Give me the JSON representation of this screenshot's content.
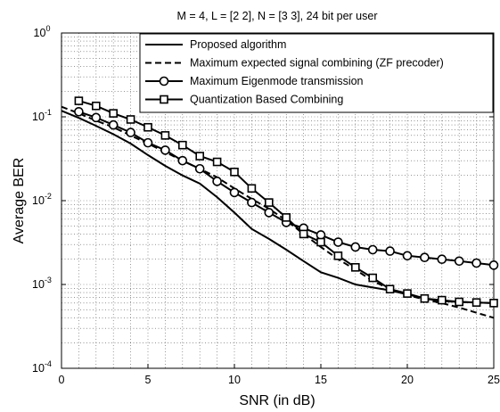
{
  "chart_data": {
    "type": "line",
    "title": "M = 4, L = [2 2], N = [3 3], 24 bit per user",
    "xlabel": "SNR (in dB)",
    "ylabel": "Average BER",
    "xlim": [
      0,
      25
    ],
    "ylim": [
      0.0001,
      1
    ],
    "yscale": "log",
    "grid": true,
    "legend_position": "top-right",
    "x_ticks": [
      "0",
      "5",
      "10",
      "15",
      "20",
      "25"
    ],
    "y_ticks": [
      {
        "base": "10",
        "exp": "-4"
      },
      {
        "base": "10",
        "exp": "-3"
      },
      {
        "base": "10",
        "exp": "-2"
      },
      {
        "base": "10",
        "exp": "-1"
      },
      {
        "base": "10",
        "exp": "0"
      }
    ],
    "series": [
      {
        "name": "Proposed algorithm",
        "style": "solid",
        "marker": "none",
        "x": [
          0,
          1,
          2,
          3,
          4,
          5,
          6,
          7,
          8,
          9,
          10,
          11,
          12,
          13,
          14,
          15,
          16,
          17,
          18,
          19,
          20,
          21,
          22,
          23,
          24,
          25
        ],
        "y": [
          0.118,
          0.097,
          0.078,
          0.062,
          0.048,
          0.035,
          0.026,
          0.02,
          0.016,
          0.011,
          0.0072,
          0.0046,
          0.0035,
          0.0026,
          0.0019,
          0.0014,
          0.0012,
          0.001,
          0.00092,
          0.00085,
          0.00076,
          0.00068,
          0.00063,
          0.00062,
          0.00061,
          0.0006
        ]
      },
      {
        "name": "Maximum expected signal combining (ZF precoder)",
        "style": "dashed",
        "marker": "none",
        "x": [
          0,
          1,
          2,
          3,
          4,
          5,
          6,
          7,
          8,
          9,
          10,
          11,
          12,
          13,
          14,
          15,
          16,
          17,
          18,
          19,
          20,
          21,
          22,
          23,
          24,
          25
        ],
        "y": [
          0.132,
          0.11,
          0.09,
          0.075,
          0.06,
          0.048,
          0.038,
          0.03,
          0.024,
          0.019,
          0.014,
          0.0105,
          0.008,
          0.0058,
          0.004,
          0.0028,
          0.002,
          0.0015,
          0.0011,
          0.00088,
          0.00075,
          0.00066,
          0.0006,
          0.00053,
          0.00046,
          0.0004
        ]
      },
      {
        "name": "Maximum Eigenmode transmission",
        "style": "solid",
        "marker": "circle",
        "x": [
          1,
          2,
          3,
          4,
          5,
          6,
          7,
          8,
          9,
          10,
          11,
          12,
          13,
          14,
          15,
          16,
          17,
          18,
          19,
          20,
          21,
          22,
          23,
          24,
          25
        ],
        "y": [
          0.115,
          0.098,
          0.08,
          0.065,
          0.049,
          0.04,
          0.03,
          0.024,
          0.017,
          0.0125,
          0.0095,
          0.0072,
          0.0055,
          0.0047,
          0.0039,
          0.0032,
          0.0028,
          0.0026,
          0.0025,
          0.0022,
          0.0021,
          0.002,
          0.0019,
          0.0018,
          0.0017
        ]
      },
      {
        "name": "Quantization Based Combining",
        "style": "solid",
        "marker": "square",
        "x": [
          1,
          2,
          3,
          4,
          5,
          6,
          7,
          8,
          9,
          10,
          11,
          12,
          13,
          14,
          15,
          16,
          17,
          18,
          19,
          20,
          21,
          22,
          23,
          24,
          25
        ],
        "y": [
          0.155,
          0.135,
          0.11,
          0.093,
          0.075,
          0.06,
          0.046,
          0.034,
          0.029,
          0.022,
          0.014,
          0.0095,
          0.0063,
          0.004,
          0.0032,
          0.0022,
          0.0016,
          0.0012,
          0.00088,
          0.00078,
          0.00068,
          0.00065,
          0.00062,
          0.00061,
          0.0006
        ]
      }
    ]
  }
}
